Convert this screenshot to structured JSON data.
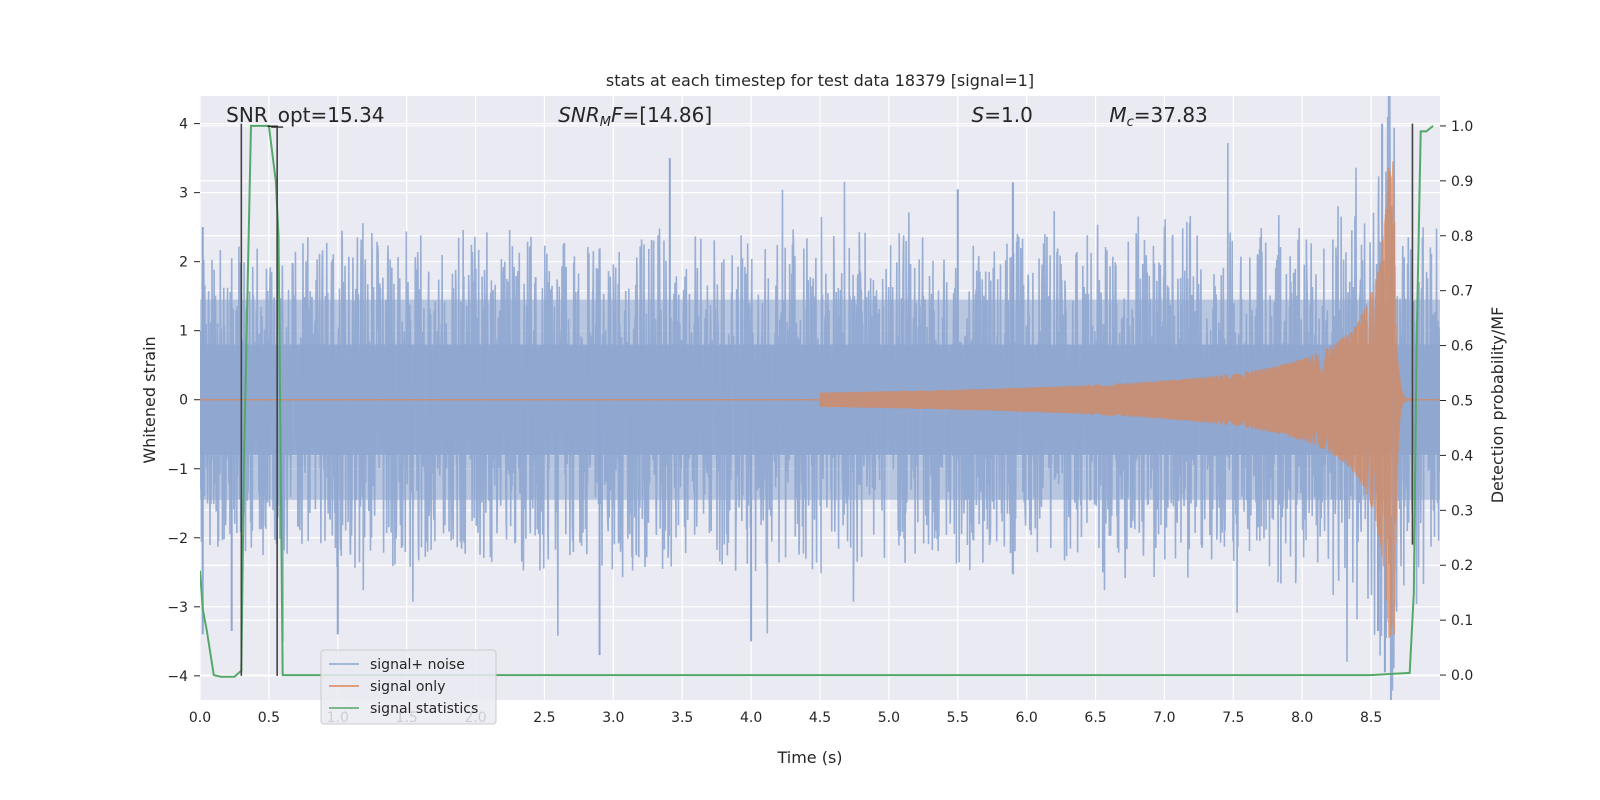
{
  "chart_data": {
    "type": "line",
    "title": "stats at each timestep for test data 18379 [signal=1]",
    "xlabel": "Time (s)",
    "ylabel": "Whitened strain",
    "y2label": "Detection probability/MF",
    "xlim": [
      0,
      9
    ],
    "ylim": [
      -4.35,
      4.4
    ],
    "y2lim": [
      -0.0454,
      1.0545
    ],
    "xticks": [
      0.0,
      0.5,
      1.0,
      1.5,
      2.0,
      2.5,
      3.0,
      3.5,
      4.0,
      4.5,
      5.0,
      5.5,
      6.0,
      6.5,
      7.0,
      7.5,
      8.0,
      8.5
    ],
    "xtick_labels": [
      "0.0",
      "0.5",
      "1.0",
      "1.5",
      "2.0",
      "2.5",
      "3.0",
      "3.5",
      "4.0",
      "4.5",
      "5.0",
      "5.5",
      "6.0",
      "6.5",
      "7.0",
      "7.5",
      "8.0",
      "8.5"
    ],
    "yticks": [
      -4,
      -3,
      -2,
      -1,
      0,
      1,
      2,
      3,
      4
    ],
    "ytick_labels": [
      "−4",
      "−3",
      "−2",
      "−1",
      "0",
      "1",
      "2",
      "3",
      "4"
    ],
    "y2ticks": [
      0.0,
      0.1,
      0.2,
      0.3,
      0.4,
      0.5,
      0.6,
      0.7,
      0.8,
      0.9,
      1.0
    ],
    "y2tick_labels": [
      "0.0",
      "0.1",
      "0.2",
      "0.3",
      "0.4",
      "0.5",
      "0.6",
      "0.7",
      "0.8",
      "0.9",
      "1.0"
    ],
    "grid": true,
    "legend_position": "lower-left",
    "annotations": [
      {
        "text": "SNR_opt=15.34",
        "x": 0.19,
        "y": 4.05,
        "math": false
      },
      {
        "text": "SNRMF=[14.86]",
        "x": 2.6,
        "y": 4.05,
        "math": "snrmf"
      },
      {
        "text": "S=1.0",
        "x": 5.6,
        "y": 4.05,
        "math": "s"
      },
      {
        "text": "Mc=37.83",
        "x": 6.6,
        "y": 4.05,
        "math": "mc"
      }
    ],
    "vertical_lines": [
      {
        "x": 0.3,
        "y0": -4.0,
        "y1": 4.0,
        "color": "#444444"
      },
      {
        "x": 0.56,
        "y0": -4.0,
        "y1": 3.95,
        "color": "#444444"
      },
      {
        "x": 8.8,
        "y0": -2.1,
        "y1": 4.0,
        "color": "#444444"
      }
    ],
    "series": [
      {
        "name": "signal+ noise",
        "color": "#8fa7d0",
        "axis": "left",
        "kind": "noise",
        "envelope_x": [
          0.0,
          0.3,
          0.6,
          1.0,
          2.0,
          3.0,
          4.0,
          5.0,
          6.0,
          7.0,
          8.0,
          8.4,
          8.6,
          8.8,
          9.0
        ],
        "envelope_amp": [
          1.6,
          1.6,
          1.6,
          1.7,
          1.7,
          1.7,
          1.7,
          1.7,
          1.7,
          1.7,
          1.75,
          1.9,
          2.1,
          1.9,
          1.8
        ],
        "dense_band": 0.8,
        "spikes": [
          {
            "x": 0.02,
            "y": 2.5
          },
          {
            "x": 0.02,
            "y": -3.4
          },
          {
            "x": 0.23,
            "y": -3.35
          },
          {
            "x": 0.6,
            "y": -3.5
          },
          {
            "x": 1.0,
            "y": -3.4
          },
          {
            "x": 2.9,
            "y": -3.7
          },
          {
            "x": 3.41,
            "y": 3.5
          },
          {
            "x": 4.0,
            "y": -3.5
          },
          {
            "x": 5.9,
            "y": 3.15
          },
          {
            "x": 5.5,
            "y": 3.05
          },
          {
            "x": 8.58,
            "y": 4.0
          },
          {
            "x": 8.6,
            "y": -3.95
          },
          {
            "x": 8.65,
            "y": 2.8
          },
          {
            "x": 8.55,
            "y": -3.35
          }
        ]
      },
      {
        "name": "signal only",
        "color": "#dd8452",
        "axis": "left",
        "kind": "chirp",
        "t_merge": 8.67,
        "amp_min": 0.02,
        "amp_max": 3.45,
        "visible_from": 4.5
      },
      {
        "name": "signal statistics",
        "color": "#55a868",
        "axis": "right",
        "kind": "line",
        "x": [
          0.0,
          0.02,
          0.05,
          0.1,
          0.15,
          0.2,
          0.25,
          0.3,
          0.32,
          0.37,
          0.4,
          0.45,
          0.5,
          0.55,
          0.57,
          0.6,
          0.62,
          0.65,
          1.0,
          2.0,
          3.0,
          4.0,
          5.0,
          6.0,
          7.0,
          8.0,
          8.5,
          8.78,
          8.81,
          8.83,
          8.86,
          8.9,
          8.95
        ],
        "y": [
          0.19,
          0.12,
          0.08,
          0.0,
          -0.003,
          -0.003,
          -0.003,
          0.008,
          0.4,
          1.0,
          1.0,
          1.0,
          1.0,
          0.9,
          0.8,
          0.0,
          0.0,
          0.0,
          0.0,
          0.0,
          0.0,
          0.0,
          0.0,
          0.0,
          0.0,
          0.0,
          0.0,
          0.004,
          0.15,
          0.6,
          0.99,
          0.99,
          1.0
        ]
      }
    ]
  }
}
